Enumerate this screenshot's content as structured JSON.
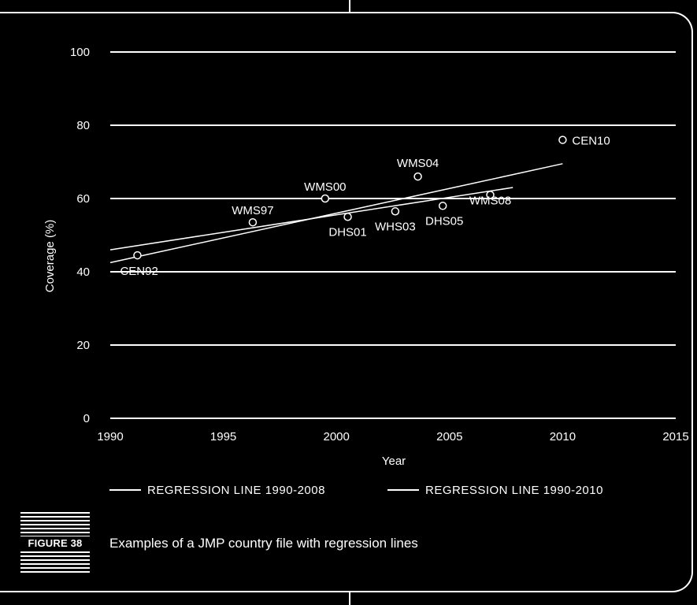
{
  "chart_data": {
    "type": "scatter",
    "title": "",
    "xlabel": "Year",
    "ylabel": "Coverage (%)",
    "xlim": [
      1990,
      2015
    ],
    "ylim": [
      0,
      100
    ],
    "x_ticks": [
      "1990",
      "1995",
      "2000",
      "2005",
      "2010",
      "2015"
    ],
    "y_ticks": [
      "0",
      "20",
      "40",
      "60",
      "80",
      "100"
    ],
    "grid": "horizontal",
    "points": [
      {
        "label": "CEN92",
        "x": 1991.2,
        "y": 44.5
      },
      {
        "label": "WMS97",
        "x": 1996.3,
        "y": 53.5
      },
      {
        "label": "WMS00",
        "x": 1999.5,
        "y": 60.0
      },
      {
        "label": "DHS01",
        "x": 2000.5,
        "y": 55.0
      },
      {
        "label": "WHS03",
        "x": 2002.6,
        "y": 56.5
      },
      {
        "label": "WMS04",
        "x": 2003.6,
        "y": 66.0
      },
      {
        "label": "DHS05",
        "x": 2004.7,
        "y": 58.0
      },
      {
        "label": "WMS08",
        "x": 2006.8,
        "y": 61.0
      },
      {
        "label": "CEN10",
        "x": 2010.0,
        "y": 76.0
      }
    ],
    "series": [
      {
        "name": "REGRESSION LINE 1990-2008",
        "x": [
          1990,
          2007.8
        ],
        "y": [
          46.0,
          63.0
        ]
      },
      {
        "name": "REGRESSION LINE 1990-2010",
        "x": [
          1990,
          2010.0
        ],
        "y": [
          42.5,
          69.5
        ]
      }
    ],
    "legend_position": "bottom"
  },
  "figure": {
    "label": "FIGURE 38",
    "caption": "Examples of a JMP country file with regression lines"
  }
}
